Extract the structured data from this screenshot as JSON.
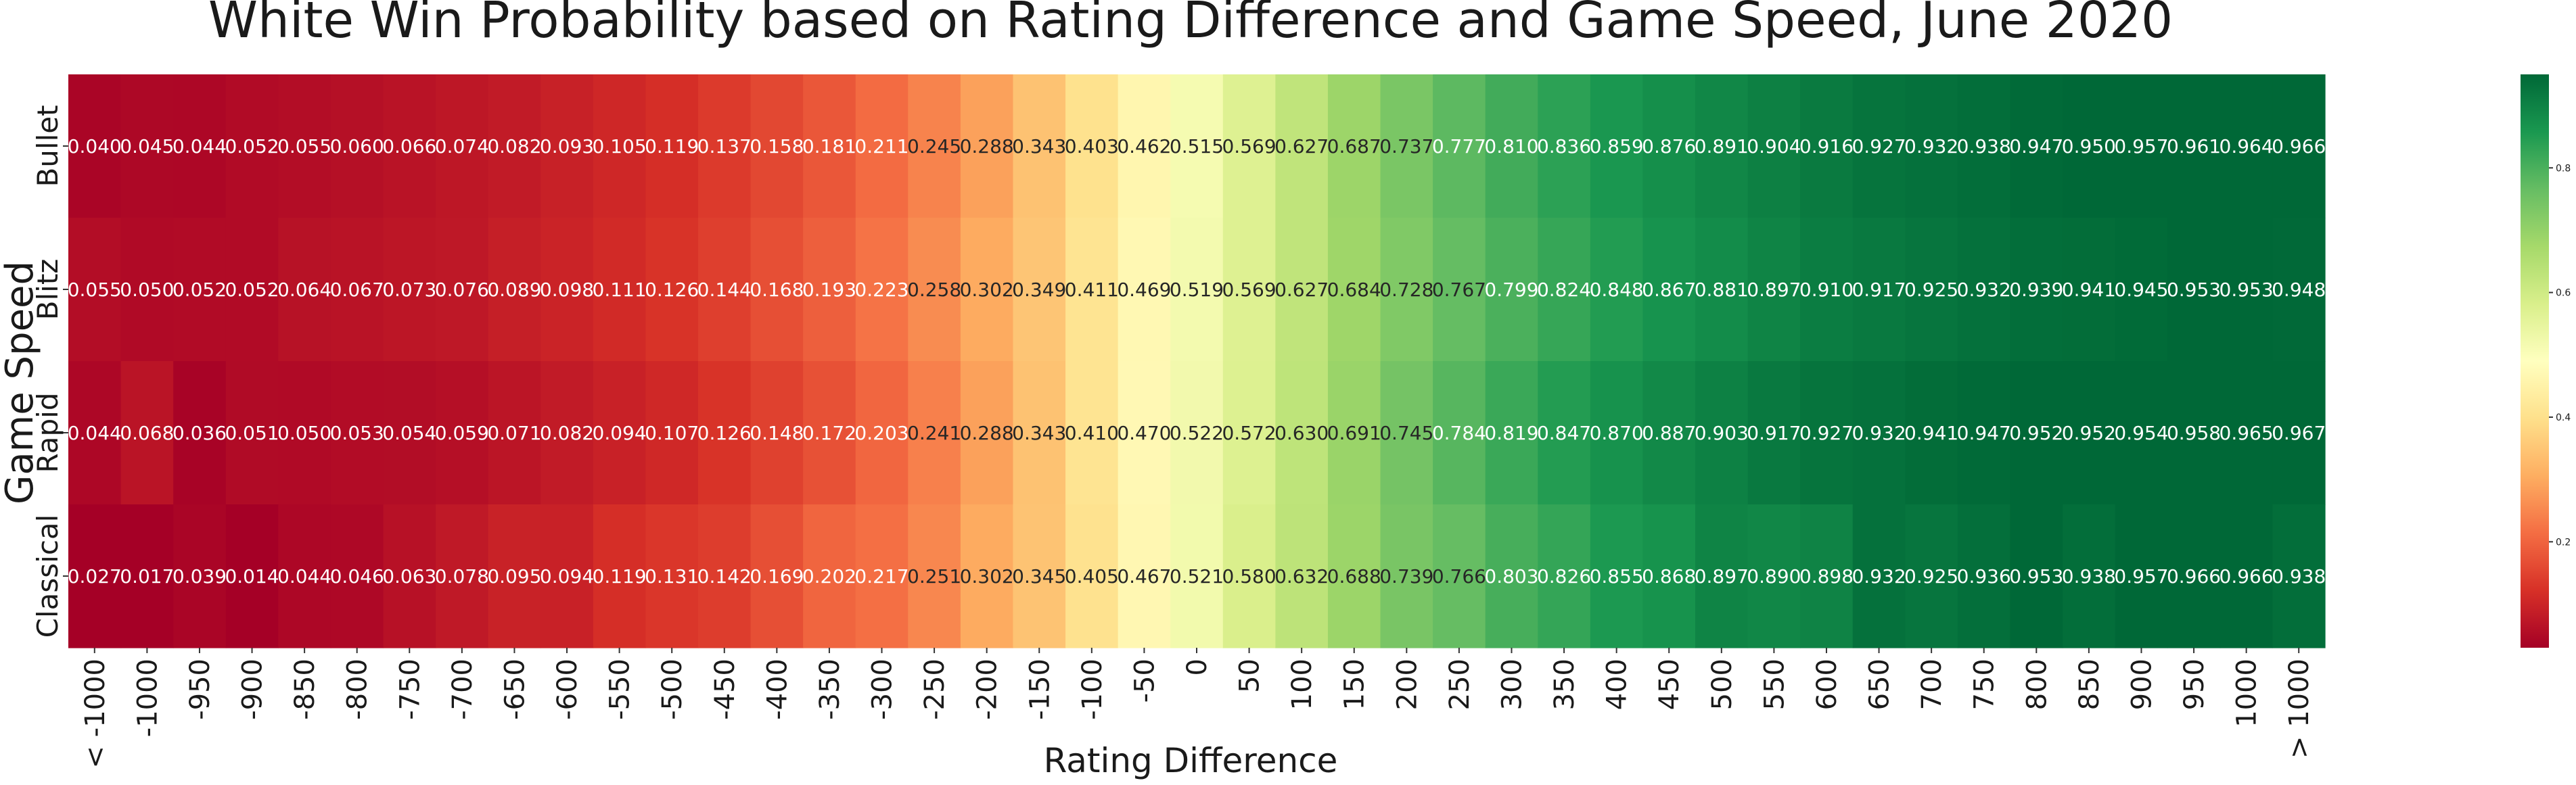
{
  "chart_data": {
    "type": "heatmap",
    "title": "White Win Probability based on Rating Difference and Game Speed, June 2020",
    "xlabel": "Rating Difference",
    "ylabel": "Game Speed",
    "x": [
      "< -1000",
      "-1000",
      "-950",
      "-900",
      "-850",
      "-800",
      "-750",
      "-700",
      "-650",
      "-600",
      "-550",
      "-500",
      "-450",
      "-400",
      "-350",
      "-300",
      "-250",
      "-200",
      "-150",
      "-100",
      "-50",
      "0",
      "50",
      "100",
      "150",
      "200",
      "250",
      "300",
      "350",
      "400",
      "450",
      "500",
      "550",
      "600",
      "650",
      "700",
      "750",
      "800",
      "850",
      "900",
      "950",
      "1000",
      "> 1000"
    ],
    "y": [
      "Bullet",
      "Blitz",
      "Rapid",
      "Classical"
    ],
    "values": [
      [
        "0.040",
        "0.045",
        "0.044",
        "0.052",
        "0.055",
        "0.060",
        "0.066",
        "0.074",
        "0.082",
        "0.093",
        "0.105",
        "0.119",
        "0.137",
        "0.158",
        "0.181",
        "0.211",
        "0.245",
        "0.288",
        "0.343",
        "0.403",
        "0.462",
        "0.515",
        "0.569",
        "0.627",
        "0.687",
        "0.737",
        "0.777",
        "0.810",
        "0.836",
        "0.859",
        "0.876",
        "0.891",
        "0.904",
        "0.916",
        "0.927",
        "0.932",
        "0.938",
        "0.947",
        "0.950",
        "0.957",
        "0.961",
        "0.964",
        "0.966"
      ],
      [
        "0.055",
        "0.050",
        "0.052",
        "0.052",
        "0.064",
        "0.067",
        "0.073",
        "0.076",
        "0.089",
        "0.098",
        "0.111",
        "0.126",
        "0.144",
        "0.168",
        "0.193",
        "0.223",
        "0.258",
        "0.302",
        "0.349",
        "0.411",
        "0.469",
        "0.519",
        "0.569",
        "0.627",
        "0.684",
        "0.728",
        "0.767",
        "0.799",
        "0.824",
        "0.848",
        "0.867",
        "0.881",
        "0.897",
        "0.910",
        "0.917",
        "0.925",
        "0.932",
        "0.939",
        "0.941",
        "0.945",
        "0.953",
        "0.953",
        "0.948"
      ],
      [
        "0.044",
        "0.068",
        "0.036",
        "0.051",
        "0.050",
        "0.053",
        "0.054",
        "0.059",
        "0.071",
        "0.082",
        "0.094",
        "0.107",
        "0.126",
        "0.148",
        "0.172",
        "0.203",
        "0.241",
        "0.288",
        "0.343",
        "0.410",
        "0.470",
        "0.522",
        "0.572",
        "0.630",
        "0.691",
        "0.745",
        "0.784",
        "0.819",
        "0.847",
        "0.870",
        "0.887",
        "0.903",
        "0.917",
        "0.927",
        "0.932",
        "0.941",
        "0.947",
        "0.952",
        "0.952",
        "0.954",
        "0.958",
        "0.965",
        "0.967"
      ],
      [
        "0.027",
        "0.017",
        "0.039",
        "0.014",
        "0.044",
        "0.046",
        "0.063",
        "0.078",
        "0.095",
        "0.094",
        "0.119",
        "0.131",
        "0.142",
        "0.169",
        "0.202",
        "0.217",
        "0.251",
        "0.302",
        "0.345",
        "0.405",
        "0.467",
        "0.521",
        "0.580",
        "0.632",
        "0.688",
        "0.739",
        "0.766",
        "0.803",
        "0.826",
        "0.855",
        "0.868",
        "0.897",
        "0.890",
        "0.898",
        "0.932",
        "0.925",
        "0.936",
        "0.953",
        "0.938",
        "0.957",
        "0.966",
        "0.966",
        "0.938"
      ]
    ],
    "colorbar": {
      "ticks": [
        "0.2",
        "0.4",
        "0.6",
        "0.8"
      ],
      "range": [
        0,
        1
      ]
    },
    "colormap": "RdYlGn"
  }
}
